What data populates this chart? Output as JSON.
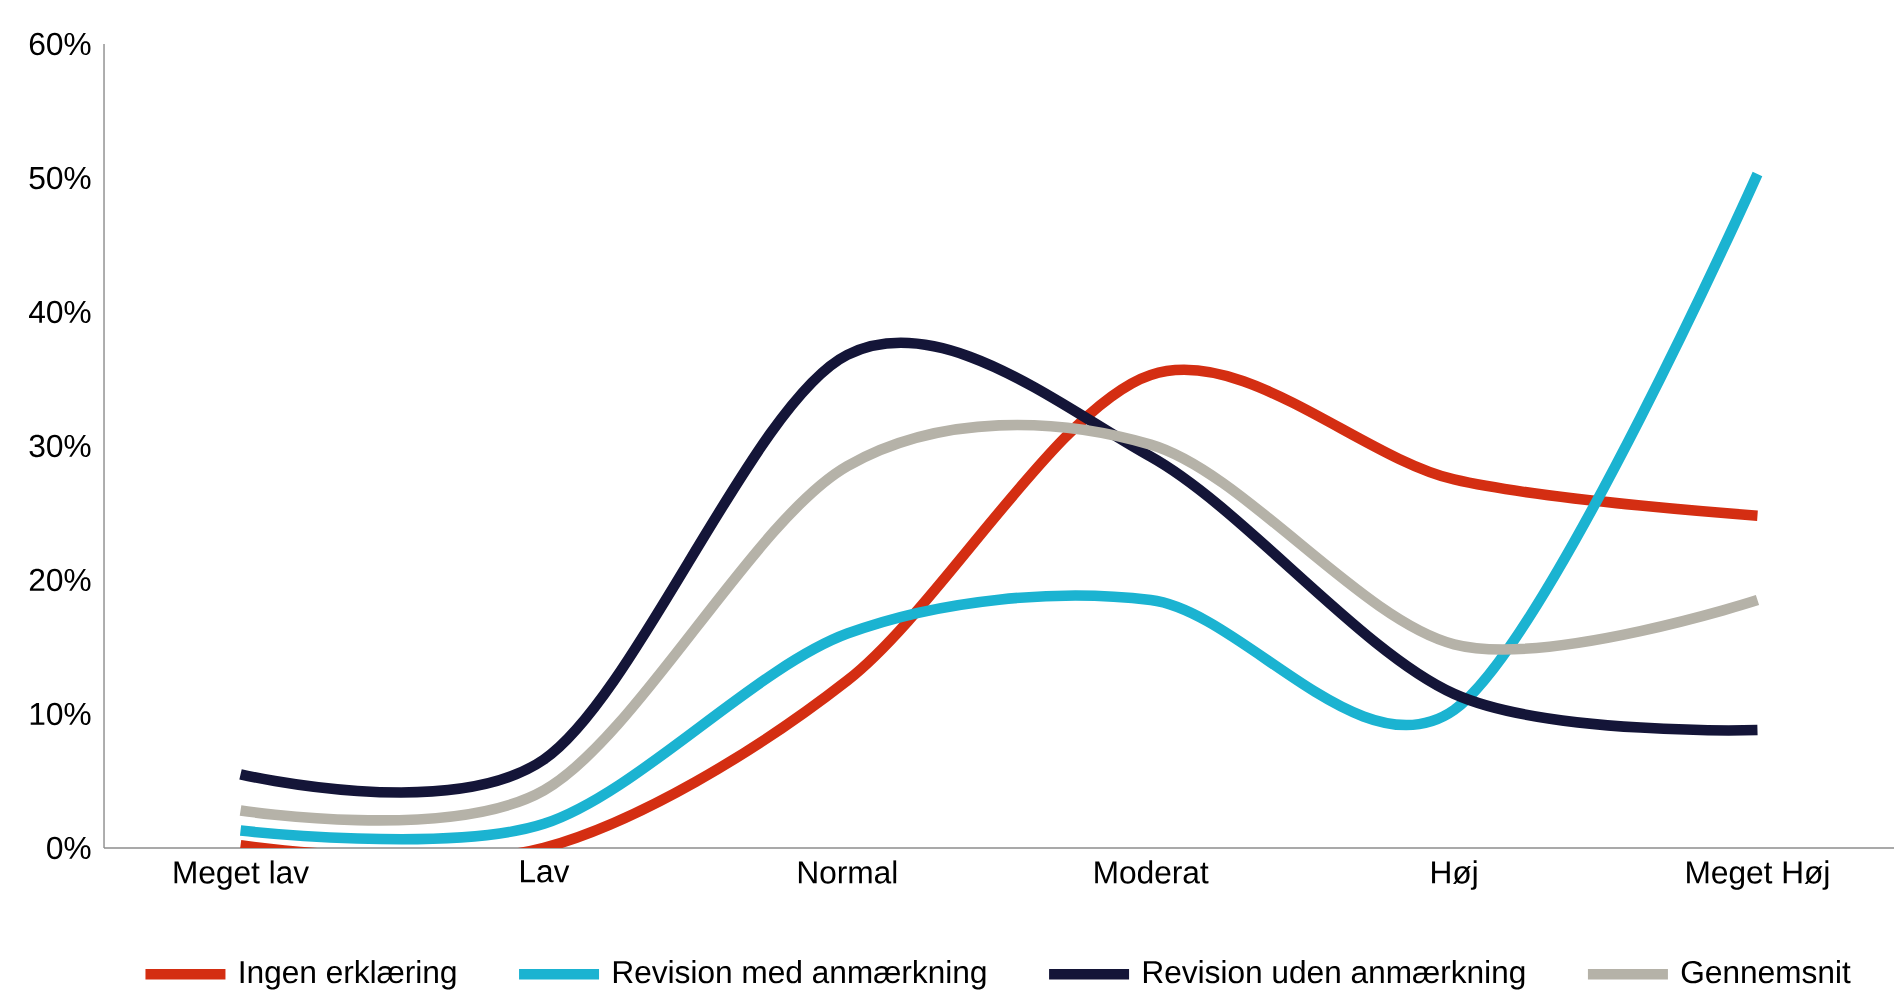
{
  "chart_data": {
    "type": "line",
    "categories": [
      "Meget lav",
      "Lav",
      "Normal",
      "Moderat",
      "Høj",
      "Meget Høj"
    ],
    "series": [
      {
        "name": "Ingen erklæring",
        "color": "#d42e12",
        "values": [
          0.2,
          0,
          12.5,
          35.3,
          27.5,
          24.8
        ]
      },
      {
        "name": "Revision med anmærkning",
        "color": "#1bb3d1",
        "values": [
          1.3,
          1.8,
          16,
          18.5,
          10.3,
          50.3
        ]
      },
      {
        "name": "Revision uden anmærkning",
        "color": "#141538",
        "values": [
          5.5,
          6.6,
          36.8,
          29.2,
          11.5,
          8.8
        ]
      },
      {
        "name": "Gennemsnit",
        "color": "#b5b2a8",
        "values": [
          2.8,
          4.3,
          28.5,
          30.1,
          15.2,
          18.5
        ]
      }
    ],
    "ylim": [
      0,
      60
    ],
    "yticks": [
      {
        "value": 0,
        "label": "0%"
      },
      {
        "value": 10,
        "label": "10%"
      },
      {
        "value": 20,
        "label": "20%"
      },
      {
        "value": 30,
        "label": "30%"
      },
      {
        "value": 40,
        "label": "40%"
      },
      {
        "value": 50,
        "label": "50%"
      },
      {
        "value": 60,
        "label": "60%"
      }
    ],
    "grid": false,
    "legend": "bottom",
    "marker": "none",
    "line_style": "solid"
  }
}
